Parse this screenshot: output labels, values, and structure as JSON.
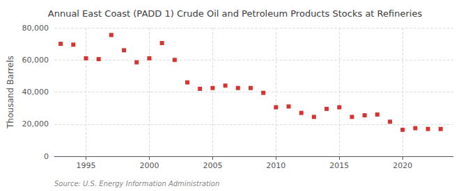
{
  "chart_data": {
    "type": "scatter",
    "title": "Annual East Coast (PADD 1) Crude Oil and Petroleum Products Stocks at Refineries",
    "ylabel": "Thousand Barrels",
    "annotation": "Source: U.S. Energy Information Administration",
    "x": [
      1993,
      1994,
      1995,
      1996,
      1997,
      1998,
      1999,
      2000,
      2001,
      2002,
      2003,
      2004,
      2005,
      2006,
      2007,
      2008,
      2009,
      2010,
      2011,
      2012,
      2013,
      2014,
      2015,
      2016,
      2017,
      2018,
      2019,
      2020,
      2021,
      2022,
      2023
    ],
    "values": [
      70000,
      69500,
      61000,
      60500,
      75500,
      66000,
      58500,
      61000,
      70500,
      60000,
      46000,
      42000,
      42500,
      44000,
      42500,
      42500,
      39500,
      30500,
      31000,
      27000,
      24500,
      29500,
      30500,
      24500,
      25500,
      26000,
      21500,
      16500,
      17500,
      17000,
      17000
    ],
    "color": "#cc0000",
    "marker": "square",
    "xlim": [
      1992.5,
      2024
    ],
    "xticks": [
      1995,
      2000,
      2005,
      2010,
      2015,
      2020
    ],
    "ylim": [
      0,
      80000
    ],
    "yticks": [
      0,
      {
        "value": 20000,
        "label": "20,000"
      },
      {
        "value": 40000,
        "label": "40,000"
      },
      {
        "value": 60000,
        "label": "60,000"
      },
      {
        "value": 80000,
        "label": "80,000"
      }
    ],
    "grid": true
  }
}
